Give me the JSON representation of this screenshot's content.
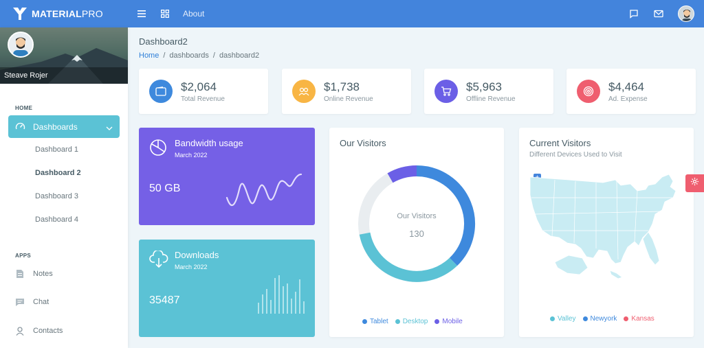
{
  "brand": {
    "bold": "MATERIAL",
    "light": "PRO"
  },
  "topbar": {
    "about_label": "About"
  },
  "profile": {
    "name": "Steave Rojer"
  },
  "sidebar": {
    "home_section": "HOME",
    "dashboards_label": "Dashboards",
    "sub_items": [
      "Dashboard 1",
      "Dashboard 2",
      "Dashboard 3",
      "Dashboard 4"
    ],
    "apps_section": "APPS",
    "apps": [
      "Notes",
      "Chat",
      "Contacts"
    ]
  },
  "page": {
    "title": "Dashboard2",
    "breadcrumb": [
      "Home",
      "dashboards",
      "dashboard2"
    ]
  },
  "stats": [
    {
      "value": "$2,064",
      "label": "Total Revenue",
      "color": "#3e89dd"
    },
    {
      "value": "$1,738",
      "label": "Online Revenue",
      "color": "#f8b544"
    },
    {
      "value": "$5,963",
      "label": "Offline Revenue",
      "color": "#6b5fe6"
    },
    {
      "value": "$4,464",
      "label": "Ad. Expense",
      "color": "#ef5e6f"
    }
  ],
  "bandwidth": {
    "title": "Bandwidth usage",
    "date": "March 2022",
    "value": "50 GB",
    "color": "#7560e6"
  },
  "downloads": {
    "title": "Downloads",
    "date": "March 2022",
    "value": "35487",
    "color": "#5bc2d5"
  },
  "visitors": {
    "title": "Our Visitors",
    "center_label": "Our Visitors",
    "center_value": "130",
    "legend": [
      {
        "name": "Tablet",
        "color": "#3e89dd"
      },
      {
        "name": "Desktop",
        "color": "#5bc2d5"
      },
      {
        "name": "Mobile",
        "color": "#6b5fe6"
      }
    ]
  },
  "current_visitors": {
    "title": "Current Visitors",
    "subtitle": "Different Devices Used to Visit",
    "legend": [
      {
        "name": "Valley",
        "color": "#5bc2d5"
      },
      {
        "name": "Newyork",
        "color": "#3e89dd"
      },
      {
        "name": "Kansas",
        "color": "#ef5e6f"
      }
    ]
  }
}
